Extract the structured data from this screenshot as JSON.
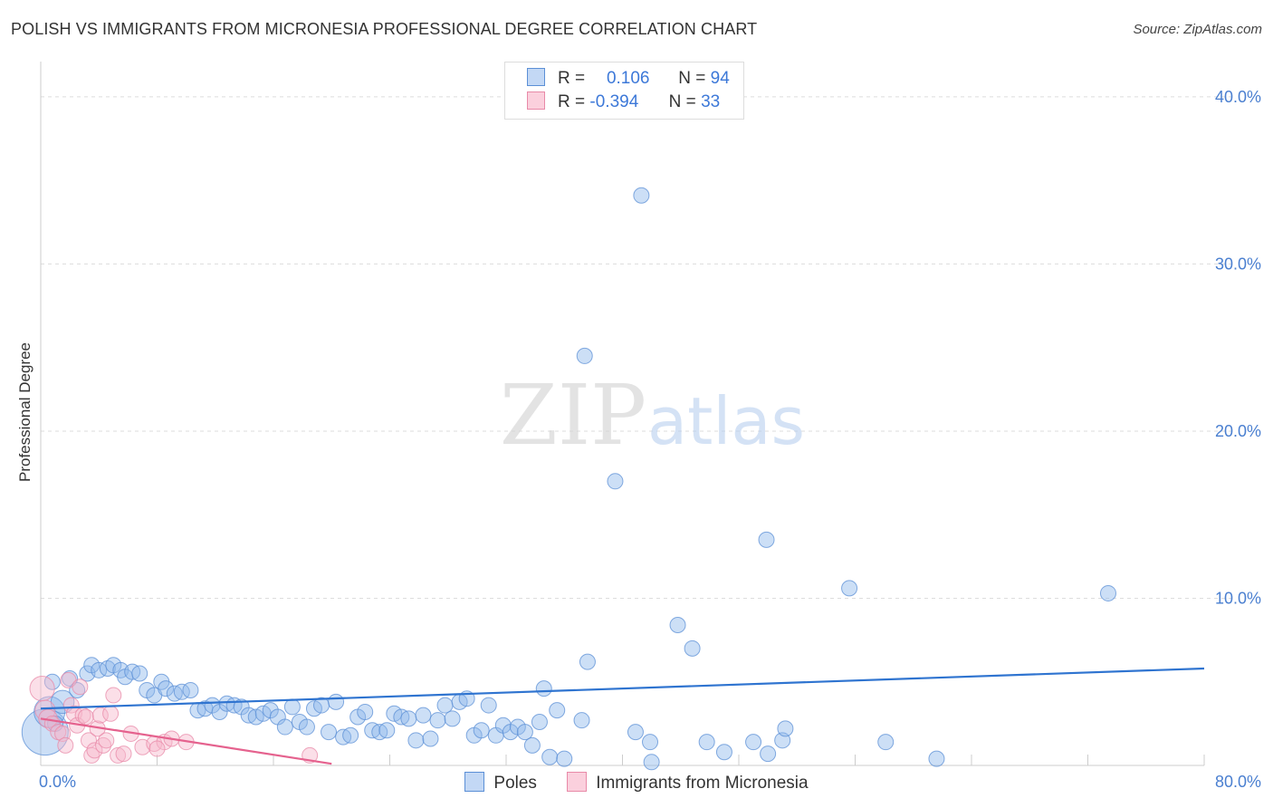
{
  "chart_data": {
    "type": "scatter",
    "title": "POLISH VS IMMIGRANTS FROM MICRONESIA PROFESSIONAL DEGREE CORRELATION CHART",
    "source": "Source: ZipAtlas.com",
    "xlabel": "",
    "ylabel": "Professional Degree",
    "xlim": [
      0,
      80
    ],
    "ylim": [
      0,
      42
    ],
    "x_tick_labels": [
      "0.0%",
      "80.0%"
    ],
    "y_ticks": [
      10,
      20,
      30,
      40
    ],
    "y_tick_labels": [
      "10.0%",
      "20.0%",
      "30.0%",
      "40.0%"
    ],
    "watermark": {
      "left": "ZIP",
      "right": "atlas"
    },
    "legend": {
      "r_label": "R =",
      "n_label": "N =",
      "rows": [
        {
          "r": "0.106",
          "n": "94"
        },
        {
          "r": "-0.394",
          "n": "33"
        }
      ]
    },
    "series": [
      {
        "name": "Poles",
        "color": "#8fb7ec",
        "stroke": "#5b8fd6",
        "trend_color": "#2f74d0",
        "trend": {
          "x": [
            0,
            80
          ],
          "y": [
            3.4,
            5.8
          ]
        },
        "points": [
          [
            0.3,
            2.0,
            3
          ],
          [
            0.6,
            3.2,
            2
          ],
          [
            1.0,
            2.5,
            1
          ],
          [
            1.5,
            3.8,
            1.5
          ],
          [
            2.0,
            5.2,
            1
          ],
          [
            2.5,
            4.5,
            1
          ],
          [
            3.2,
            5.5,
            1
          ],
          [
            3.5,
            6.0,
            1
          ],
          [
            4.0,
            5.7,
            1
          ],
          [
            4.6,
            5.8,
            1
          ],
          [
            5.0,
            6.0,
            1
          ],
          [
            5.5,
            5.7,
            1
          ],
          [
            5.8,
            5.3,
            1
          ],
          [
            6.3,
            5.6,
            1
          ],
          [
            6.8,
            5.5,
            1
          ],
          [
            7.3,
            4.5,
            1
          ],
          [
            7.8,
            4.2,
            1
          ],
          [
            8.3,
            5.0,
            1
          ],
          [
            8.6,
            4.6,
            1
          ],
          [
            9.2,
            4.3,
            1
          ],
          [
            9.7,
            4.4,
            1
          ],
          [
            10.3,
            4.5,
            1
          ],
          [
            10.8,
            3.3,
            1
          ],
          [
            11.3,
            3.4,
            1
          ],
          [
            11.8,
            3.6,
            1
          ],
          [
            12.3,
            3.2,
            1
          ],
          [
            12.8,
            3.7,
            1
          ],
          [
            13.3,
            3.6,
            1
          ],
          [
            13.8,
            3.5,
            1
          ],
          [
            14.3,
            3.0,
            1
          ],
          [
            14.8,
            2.9,
            1
          ],
          [
            15.3,
            3.1,
            1
          ],
          [
            15.8,
            3.3,
            1
          ],
          [
            16.3,
            2.9,
            1
          ],
          [
            16.8,
            2.3,
            1
          ],
          [
            17.3,
            3.5,
            1
          ],
          [
            17.8,
            2.6,
            1
          ],
          [
            18.3,
            2.3,
            1
          ],
          [
            18.8,
            3.4,
            1
          ],
          [
            19.3,
            3.6,
            1
          ],
          [
            19.8,
            2.0,
            1
          ],
          [
            20.3,
            3.8,
            1
          ],
          [
            20.8,
            1.7,
            1
          ],
          [
            21.3,
            1.8,
            1
          ],
          [
            21.8,
            2.9,
            1
          ],
          [
            22.3,
            3.2,
            1
          ],
          [
            22.8,
            2.1,
            1
          ],
          [
            23.3,
            2.0,
            1
          ],
          [
            23.8,
            2.1,
            1
          ],
          [
            24.3,
            3.1,
            1
          ],
          [
            24.8,
            2.9,
            1
          ],
          [
            25.3,
            2.8,
            1
          ],
          [
            25.8,
            1.5,
            1
          ],
          [
            26.3,
            3.0,
            1
          ],
          [
            26.8,
            1.6,
            1
          ],
          [
            27.3,
            2.7,
            1
          ],
          [
            27.8,
            3.6,
            1
          ],
          [
            28.3,
            2.8,
            1
          ],
          [
            28.8,
            3.8,
            1
          ],
          [
            29.3,
            4.0,
            1
          ],
          [
            29.8,
            1.8,
            1
          ],
          [
            30.3,
            2.1,
            1
          ],
          [
            30.8,
            3.6,
            1
          ],
          [
            31.3,
            1.8,
            1
          ],
          [
            31.8,
            2.4,
            1
          ],
          [
            32.3,
            2.0,
            1
          ],
          [
            32.8,
            2.3,
            1
          ],
          [
            33.3,
            2.0,
            1
          ],
          [
            33.8,
            1.2,
            1
          ],
          [
            34.3,
            2.6,
            1
          ],
          [
            34.6,
            4.6,
            1
          ],
          [
            35.0,
            0.5,
            1
          ],
          [
            35.5,
            3.3,
            1
          ],
          [
            36.0,
            0.4,
            1
          ],
          [
            37.2,
            2.7,
            1
          ],
          [
            37.6,
            6.2,
            1
          ],
          [
            39.5,
            17.0,
            1
          ],
          [
            41.3,
            34.1,
            1
          ],
          [
            40.9,
            2.0,
            1
          ],
          [
            41.9,
            1.4,
            1
          ],
          [
            42.0,
            0.2,
            1
          ],
          [
            43.8,
            8.4,
            1
          ],
          [
            44.8,
            7.0,
            1
          ],
          [
            45.8,
            1.4,
            1
          ],
          [
            47.0,
            0.8,
            1
          ],
          [
            49.0,
            1.4,
            1
          ],
          [
            50.0,
            0.7,
            1
          ],
          [
            51.0,
            1.5,
            1
          ],
          [
            51.2,
            2.2,
            1
          ],
          [
            49.9,
            13.5,
            1
          ],
          [
            37.4,
            24.5,
            1
          ],
          [
            55.6,
            10.6,
            1
          ],
          [
            58.1,
            1.4,
            1
          ],
          [
            61.6,
            0.4,
            1
          ],
          [
            73.4,
            10.3,
            1
          ],
          [
            0.8,
            5.0,
            1
          ]
        ]
      },
      {
        "name": "Immigrants from Micronesia",
        "color": "#f7b8cc",
        "stroke": "#e88aa8",
        "trend_color": "#e5628e",
        "trend": {
          "x": [
            0,
            20
          ],
          "y": [
            2.8,
            0.1
          ]
        },
        "points": [
          [
            0.1,
            4.6,
            1.6
          ],
          [
            0.3,
            3.3,
            1.3
          ],
          [
            0.5,
            2.8,
            1.2
          ],
          [
            0.8,
            2.5,
            1
          ],
          [
            1.2,
            2.0,
            1
          ],
          [
            1.5,
            1.9,
            1
          ],
          [
            1.7,
            1.2,
            1
          ],
          [
            1.9,
            5.1,
            1
          ],
          [
            2.1,
            3.6,
            1
          ],
          [
            2.3,
            3.1,
            1
          ],
          [
            2.5,
            2.4,
            1
          ],
          [
            2.7,
            4.7,
            1
          ],
          [
            2.9,
            3.0,
            1
          ],
          [
            3.1,
            2.9,
            1
          ],
          [
            3.3,
            1.5,
            1
          ],
          [
            3.5,
            0.6,
            1
          ],
          [
            3.7,
            0.9,
            1
          ],
          [
            3.9,
            2.2,
            1
          ],
          [
            4.1,
            3.0,
            1
          ],
          [
            4.3,
            1.2,
            1
          ],
          [
            4.5,
            1.5,
            1
          ],
          [
            4.8,
            3.1,
            1
          ],
          [
            5.0,
            4.2,
            1
          ],
          [
            5.3,
            0.6,
            1
          ],
          [
            5.7,
            0.7,
            1
          ],
          [
            6.2,
            1.9,
            1
          ],
          [
            7.0,
            1.1,
            1
          ],
          [
            7.8,
            1.3,
            1
          ],
          [
            8.5,
            1.4,
            1
          ],
          [
            8.0,
            1.0,
            1
          ],
          [
            9.0,
            1.6,
            1
          ],
          [
            10.0,
            1.4,
            1
          ],
          [
            18.5,
            0.6,
            1
          ]
        ]
      }
    ]
  }
}
